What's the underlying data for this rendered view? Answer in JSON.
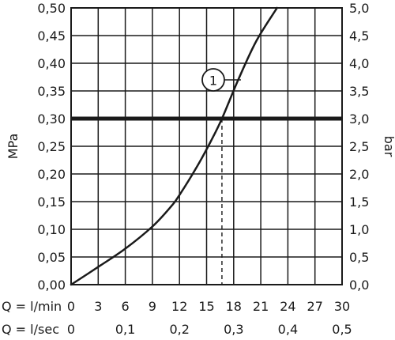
{
  "chart_data": {
    "type": "line",
    "left_axis": {
      "label": "MPa",
      "ticks": [
        "0,00",
        "0,05",
        "0,10",
        "0,15",
        "0,20",
        "0,25",
        "0,30",
        "0,35",
        "0,40",
        "0,45",
        "0,50"
      ],
      "range": [
        0,
        0.5
      ]
    },
    "right_axis": {
      "label": "bar",
      "ticks": [
        "0,0",
        "0,5",
        "1,0",
        "1,5",
        "2,0",
        "2,5",
        "3,0",
        "3,5",
        "4,0",
        "4,5",
        "5,0"
      ],
      "range": [
        0,
        5
      ]
    },
    "x_axis_lpm": {
      "label": "Q = l/min",
      "ticks": [
        "0",
        "3",
        "6",
        "9",
        "12",
        "15",
        "18",
        "21",
        "24",
        "27",
        "30"
      ],
      "range": [
        0,
        30
      ]
    },
    "x_axis_lps": {
      "label": "Q = l/sec",
      "ticks": [
        "0",
        "0,1",
        "0,2",
        "0,3",
        "0,4",
        "0,5"
      ]
    },
    "grid": true,
    "reference_line": {
      "y": 0.3
    },
    "operating_point": {
      "x": 16.7,
      "y": 0.3
    },
    "series": [
      {
        "marker_label": "1",
        "points": [
          {
            "x": 0,
            "y": 0
          },
          {
            "x": 3,
            "y": 0.032
          },
          {
            "x": 6,
            "y": 0.065
          },
          {
            "x": 9,
            "y": 0.105
          },
          {
            "x": 11,
            "y": 0.14
          },
          {
            "x": 12,
            "y": 0.162
          },
          {
            "x": 14,
            "y": 0.215
          },
          {
            "x": 15.5,
            "y": 0.26
          },
          {
            "x": 16.7,
            "y": 0.3
          },
          {
            "x": 18.5,
            "y": 0.37
          },
          {
            "x": 20.5,
            "y": 0.44
          },
          {
            "x": 22.8,
            "y": 0.5
          }
        ]
      }
    ]
  }
}
